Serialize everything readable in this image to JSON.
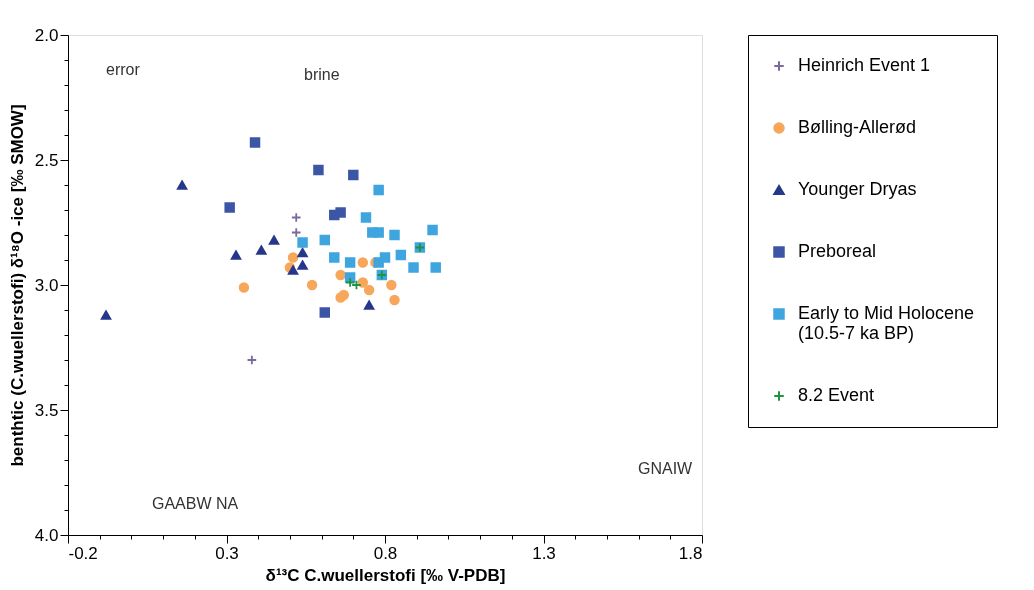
{
  "chart_data": {
    "type": "scatter",
    "xlabel": "δ¹³C C.wuellerstofi [‰ V-PDB]",
    "ylabel": "benthtic (C.wuellerstofi) δ¹⁸O -ice [‰ SMOW]",
    "xlim": [
      -0.2,
      1.8
    ],
    "xticks": [
      -0.2,
      {
        "value": -0.1,
        "label": null
      },
      {
        "value": 0.0,
        "label": null
      },
      {
        "value": 0.1,
        "label": null
      },
      {
        "value": 0.2,
        "label": null
      },
      0.3,
      {
        "value": 0.4,
        "label": null
      },
      {
        "value": 0.5,
        "label": null
      },
      {
        "value": 0.6,
        "label": null
      },
      {
        "value": 0.7,
        "label": null
      },
      0.8,
      {
        "value": 0.9,
        "label": null
      },
      {
        "value": 1.0,
        "label": null
      },
      {
        "value": 1.1,
        "label": null
      },
      {
        "value": 1.2,
        "label": null
      },
      1.3,
      {
        "value": 1.4,
        "label": null
      },
      {
        "value": 1.5,
        "label": null
      },
      {
        "value": 1.6,
        "label": null
      },
      {
        "value": 1.7,
        "label": null
      },
      1.8
    ],
    "ylim": [
      4.0,
      2.0
    ],
    "yticks": [
      {
        "value": 2.0,
        "label": "2.0"
      },
      {
        "value": 2.1,
        "label": null
      },
      {
        "value": 2.2,
        "label": null
      },
      {
        "value": 2.3,
        "label": null
      },
      {
        "value": 2.4,
        "label": null
      },
      2.5,
      {
        "value": 2.6,
        "label": null
      },
      {
        "value": 2.7,
        "label": null
      },
      {
        "value": 2.8,
        "label": null
      },
      {
        "value": 2.9,
        "label": null
      },
      {
        "value": 3.0,
        "label": "3.0"
      },
      {
        "value": 3.1,
        "label": null
      },
      {
        "value": 3.2,
        "label": null
      },
      {
        "value": 3.3,
        "label": null
      },
      {
        "value": 3.4,
        "label": null
      },
      3.5,
      {
        "value": 3.6,
        "label": null
      },
      {
        "value": 3.7,
        "label": null
      },
      {
        "value": 3.8,
        "label": null
      },
      {
        "value": 3.9,
        "label": null
      },
      {
        "value": 4.0,
        "label": "4.0"
      }
    ],
    "grid": false,
    "legend": "right",
    "series": [
      {
        "name": "Heinrich Event 1",
        "color": "#7b6a9c",
        "marker": "cross",
        "x": [
          0.52,
          0.52,
          0.38
        ],
        "values": [
          2.73,
          2.79,
          3.3
        ]
      },
      {
        "name": "Bølling-Allerød",
        "color": "#f7a75a",
        "marker": "circle",
        "x": [
          0.355,
          0.51,
          0.5,
          0.57,
          0.66,
          0.67,
          0.66,
          0.73,
          0.77,
          0.73,
          0.75,
          0.82,
          0.83
        ],
        "values": [
          3.01,
          2.89,
          2.93,
          3.0,
          2.96,
          3.04,
          3.05,
          2.91,
          2.91,
          2.99,
          3.02,
          3.0,
          3.06
        ]
      },
      {
        "name": "Younger Dryas",
        "color": "#27378a",
        "marker": "triangle",
        "x": [
          0.16,
          -0.08,
          0.33,
          0.41,
          0.45,
          0.54,
          0.54,
          0.51,
          0.75
        ],
        "values": [
          2.6,
          3.12,
          2.88,
          2.86,
          2.82,
          2.87,
          2.92,
          2.94,
          3.08
        ]
      },
      {
        "name": "Preboreal",
        "color": "#3c56a6",
        "marker": "square",
        "x": [
          0.39,
          0.59,
          0.7,
          0.31,
          0.64,
          0.66,
          0.61
        ],
        "values": [
          2.43,
          2.54,
          2.56,
          2.69,
          2.72,
          2.71,
          3.11
        ]
      },
      {
        "name": "Early to Mid Holocene\n(10.5-7 ka BP)",
        "color": "#3ea5df",
        "marker": "square",
        "x": [
          0.78,
          0.74,
          0.76,
          0.78,
          0.83,
          0.95,
          0.54,
          0.61,
          0.64,
          0.69,
          0.78,
          0.8,
          0.85,
          0.89,
          0.96,
          0.69,
          0.79,
          0.91
        ],
        "values": [
          2.62,
          2.73,
          2.79,
          2.79,
          2.8,
          2.78,
          2.83,
          2.82,
          2.89,
          2.91,
          2.91,
          2.89,
          2.88,
          2.93,
          2.93,
          2.97,
          2.96,
          2.85
        ]
      },
      {
        "name": "8.2 Event",
        "color": "#1f9243",
        "marker": "cross",
        "x": [
          0.69,
          0.71,
          0.79,
          0.91
        ],
        "values": [
          2.99,
          3.0,
          2.96,
          2.85
        ]
      }
    ],
    "annotations": [
      "error",
      "brine",
      "GNAIW",
      "GAABW NA"
    ]
  }
}
